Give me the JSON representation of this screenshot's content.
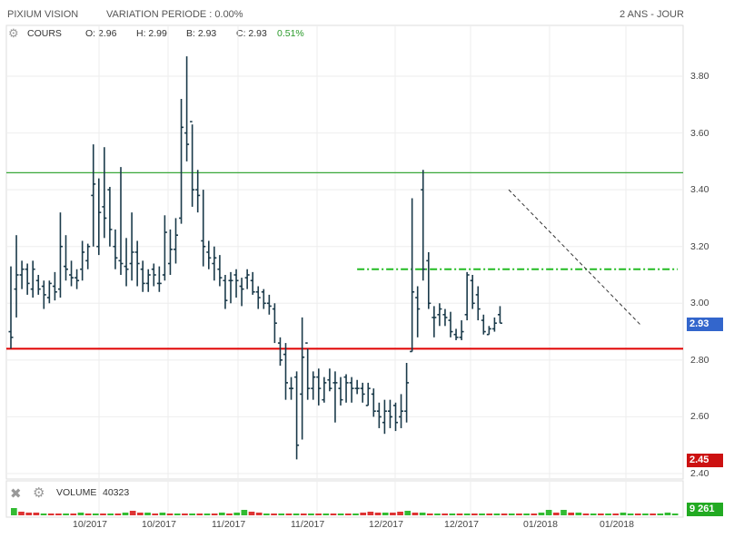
{
  "header": {
    "instrument": "PIXIUM VISION",
    "variation": "VARIATION PERIODE : 0.00%",
    "period": "2 ANS - JOUR"
  },
  "legend": {
    "series_label": "COURS",
    "open": "O: 2.96",
    "high": "H: 2.99",
    "low": "B: 2.93",
    "close": "C: 2.93",
    "change": "0.51%"
  },
  "volume": {
    "label": "VOLUME",
    "value": "40323",
    "last_tag": "9 261"
  },
  "tags": {
    "last_price": "2.93",
    "min_price": "2.45"
  },
  "colors": {
    "bar": "#1a3a4a",
    "resistance": "#3aa83a",
    "support": "#e00000",
    "dashed_target": "#22bb22",
    "price_tag": "#3366cc",
    "min_tag": "#cc1111",
    "vol_up": "#33bb33",
    "vol_down": "#dd3333"
  },
  "chart_data": {
    "type": "ohlc",
    "ylim": [
      2.4,
      3.9
    ],
    "yticks": [
      "3.80",
      "3.60",
      "3.40",
      "3.20",
      "3.00",
      "2.80",
      "2.60",
      "2.40"
    ],
    "xticks": [
      "10/2017",
      "10/2017",
      "11/2017",
      "11/2017",
      "12/2017",
      "12/2017",
      "01/2018",
      "01/2018"
    ],
    "horizontal_lines": [
      {
        "value": 3.46,
        "color": "#3aa83a",
        "style": "solid"
      },
      {
        "value": 2.84,
        "color": "#e00000",
        "style": "solid"
      },
      {
        "value": 3.12,
        "color": "#22bb22",
        "style": "dashdot",
        "from_bar": 63,
        "to_bar": 90
      }
    ],
    "trendline": {
      "from": [
        63,
        3.4
      ],
      "to": [
        90,
        2.92
      ]
    },
    "bars": [
      [
        2.9,
        3.13,
        2.84,
        2.88
      ],
      [
        3.05,
        3.24,
        2.95,
        3.1
      ],
      [
        3.1,
        3.15,
        3.05,
        3.12
      ],
      [
        3.12,
        3.14,
        3.03,
        3.07
      ],
      [
        3.05,
        3.15,
        3.02,
        3.12
      ],
      [
        3.08,
        3.1,
        3.03,
        3.05
      ],
      [
        3.06,
        3.08,
        2.98,
        3.03
      ],
      [
        3.02,
        3.08,
        3.0,
        3.07
      ],
      [
        3.06,
        3.11,
        3.01,
        3.04
      ],
      [
        3.05,
        3.32,
        3.02,
        3.2
      ],
      [
        3.13,
        3.24,
        3.08,
        3.12
      ],
      [
        3.1,
        3.15,
        3.06,
        3.09
      ],
      [
        3.09,
        3.12,
        3.05,
        3.08
      ],
      [
        3.12,
        3.22,
        3.08,
        3.18
      ],
      [
        3.15,
        3.21,
        3.12,
        3.2
      ],
      [
        3.38,
        3.56,
        3.2,
        3.42
      ],
      [
        3.2,
        3.44,
        3.17,
        3.32
      ],
      [
        3.34,
        3.55,
        3.23,
        3.3
      ],
      [
        3.4,
        3.41,
        3.2,
        3.26
      ],
      [
        3.2,
        3.26,
        3.12,
        3.16
      ],
      [
        3.15,
        3.48,
        3.1,
        3.14
      ],
      [
        3.13,
        3.23,
        3.06,
        3.12
      ],
      [
        3.14,
        3.32,
        3.08,
        3.18
      ],
      [
        3.18,
        3.22,
        3.06,
        3.14
      ],
      [
        3.12,
        3.15,
        3.04,
        3.07
      ],
      [
        3.07,
        3.12,
        3.04,
        3.1
      ],
      [
        3.12,
        3.14,
        3.06,
        3.1
      ],
      [
        3.07,
        3.13,
        3.04,
        3.07
      ],
      [
        3.1,
        3.31,
        3.08,
        3.25
      ],
      [
        3.14,
        3.26,
        3.1,
        3.19
      ],
      [
        3.19,
        3.3,
        3.14,
        3.24
      ],
      [
        3.3,
        3.72,
        3.28,
        3.62
      ],
      [
        3.6,
        3.87,
        3.5,
        3.56
      ],
      [
        3.64,
        3.63,
        3.34,
        3.4
      ],
      [
        3.4,
        3.47,
        3.32,
        3.38
      ],
      [
        3.22,
        3.4,
        3.13,
        3.2
      ],
      [
        3.18,
        3.22,
        3.12,
        3.16
      ],
      [
        3.14,
        3.2,
        3.08,
        3.16
      ],
      [
        3.12,
        3.17,
        3.06,
        3.09
      ],
      [
        3.08,
        3.1,
        2.98,
        3.01
      ],
      [
        3.08,
        3.11,
        3.0,
        3.08
      ],
      [
        3.1,
        3.12,
        3.02,
        3.08
      ],
      [
        3.06,
        3.09,
        2.99,
        3.05
      ],
      [
        3.09,
        3.12,
        3.05,
        3.1
      ],
      [
        3.08,
        3.11,
        3.03,
        3.04
      ],
      [
        3.04,
        3.06,
        2.98,
        3.02
      ],
      [
        3.04,
        3.05,
        2.98,
        3.0
      ],
      [
        3.0,
        3.03,
        2.96,
        2.99
      ],
      [
        2.98,
        3.0,
        2.86,
        2.93
      ],
      [
        2.86,
        2.88,
        2.78,
        2.8
      ],
      [
        2.82,
        2.86,
        2.66,
        2.72
      ],
      [
        2.7,
        2.74,
        2.66,
        2.7
      ],
      [
        2.74,
        2.76,
        2.45,
        2.5
      ],
      [
        2.68,
        2.95,
        2.52,
        2.81
      ],
      [
        2.86,
        2.84,
        2.66,
        2.7
      ]
    ],
    "bars2": [
      [
        2.7,
        2.76,
        2.66,
        2.74
      ],
      [
        2.74,
        2.77,
        2.64,
        2.7
      ],
      [
        2.66,
        2.74,
        2.65,
        2.72
      ],
      [
        2.73,
        2.77,
        2.69,
        2.7
      ],
      [
        2.72,
        2.76,
        2.58,
        2.72
      ],
      [
        2.7,
        2.74,
        2.64,
        2.66
      ],
      [
        2.74,
        2.75,
        2.65,
        2.72
      ],
      [
        2.72,
        2.74,
        2.65,
        2.7
      ],
      [
        2.7,
        2.73,
        2.68,
        2.7
      ],
      [
        2.7,
        2.72,
        2.65,
        2.68
      ],
      [
        2.64,
        2.72,
        2.64,
        2.7
      ],
      [
        2.68,
        2.7,
        2.6,
        2.62
      ],
      [
        2.62,
        2.65,
        2.56,
        2.6
      ],
      [
        2.58,
        2.66,
        2.54,
        2.62
      ],
      [
        2.62,
        2.66,
        2.56,
        2.6
      ],
      [
        2.64,
        2.65,
        2.55,
        2.58
      ],
      [
        2.6,
        2.68,
        2.56,
        2.62
      ],
      [
        2.62,
        2.79,
        2.58,
        2.72
      ],
      [
        2.83,
        3.37,
        2.83,
        3.04
      ],
      [
        3.02,
        3.06,
        2.88,
        2.98
      ],
      [
        3.4,
        3.47,
        3.08,
        3.12
      ],
      [
        3.15,
        3.18,
        2.98,
        3.0
      ],
      [
        2.95,
        2.99,
        2.88,
        2.95
      ],
      [
        2.96,
        3.0,
        2.92,
        2.98
      ],
      [
        2.96,
        2.98,
        2.92,
        2.95
      ],
      [
        2.94,
        2.97,
        2.88,
        2.9
      ],
      [
        2.89,
        2.91,
        2.87,
        2.88
      ],
      [
        2.88,
        2.94,
        2.87,
        2.9
      ],
      [
        2.96,
        3.11,
        2.94,
        3.1
      ],
      [
        3.08,
        3.1,
        2.98,
        3.0
      ],
      [
        3.03,
        3.06,
        2.94,
        2.98
      ],
      [
        2.94,
        2.96,
        2.89,
        2.9
      ],
      [
        2.89,
        2.92,
        2.89,
        2.91
      ],
      [
        2.91,
        2.95,
        2.9,
        2.93
      ],
      [
        2.96,
        2.99,
        2.93,
        2.93
      ]
    ],
    "volumes": [
      [
        1,
        8
      ],
      [
        0,
        4
      ],
      [
        0,
        3
      ],
      [
        0,
        3
      ],
      [
        1,
        2
      ],
      [
        0,
        2
      ],
      [
        0,
        2
      ],
      [
        1,
        2
      ],
      [
        0,
        2
      ],
      [
        1,
        3
      ],
      [
        0,
        2
      ],
      [
        1,
        2
      ],
      [
        0,
        2
      ],
      [
        1,
        2
      ],
      [
        0,
        2
      ],
      [
        1,
        3
      ],
      [
        0,
        5
      ],
      [
        0,
        3
      ],
      [
        1,
        3
      ],
      [
        0,
        2
      ],
      [
        1,
        3
      ],
      [
        0,
        2
      ],
      [
        1,
        2
      ],
      [
        0,
        2
      ],
      [
        1,
        2
      ],
      [
        0,
        2
      ],
      [
        1,
        2
      ],
      [
        0,
        2
      ],
      [
        1,
        3
      ],
      [
        0,
        2
      ],
      [
        1,
        3
      ],
      [
        1,
        6
      ],
      [
        0,
        4
      ],
      [
        0,
        3
      ],
      [
        1,
        2
      ],
      [
        0,
        2
      ],
      [
        1,
        2
      ],
      [
        0,
        2
      ],
      [
        1,
        2
      ],
      [
        0,
        2
      ],
      [
        1,
        2
      ],
      [
        0,
        2
      ],
      [
        1,
        2
      ],
      [
        0,
        2
      ],
      [
        1,
        2
      ],
      [
        0,
        2
      ],
      [
        1,
        2
      ],
      [
        0,
        3
      ],
      [
        0,
        4
      ],
      [
        0,
        3
      ],
      [
        1,
        3
      ],
      [
        0,
        3
      ],
      [
        0,
        4
      ],
      [
        1,
        5
      ],
      [
        0,
        3
      ],
      [
        1,
        3
      ],
      [
        0,
        2
      ],
      [
        1,
        2
      ],
      [
        0,
        2
      ],
      [
        1,
        2
      ],
      [
        0,
        2
      ],
      [
        1,
        2
      ],
      [
        0,
        2
      ],
      [
        1,
        2
      ],
      [
        0,
        2
      ],
      [
        1,
        2
      ],
      [
        0,
        2
      ],
      [
        1,
        2
      ],
      [
        0,
        2
      ],
      [
        1,
        2
      ],
      [
        0,
        2
      ],
      [
        1,
        3
      ],
      [
        1,
        6
      ],
      [
        0,
        3
      ],
      [
        1,
        6
      ],
      [
        0,
        3
      ],
      [
        1,
        3
      ],
      [
        0,
        2
      ],
      [
        1,
        2
      ],
      [
        0,
        2
      ],
      [
        1,
        2
      ],
      [
        0,
        2
      ],
      [
        1,
        3
      ],
      [
        1,
        2
      ],
      [
        0,
        2
      ],
      [
        1,
        2
      ],
      [
        0,
        2
      ],
      [
        1,
        2
      ],
      [
        1,
        3
      ],
      [
        1,
        2
      ]
    ]
  }
}
